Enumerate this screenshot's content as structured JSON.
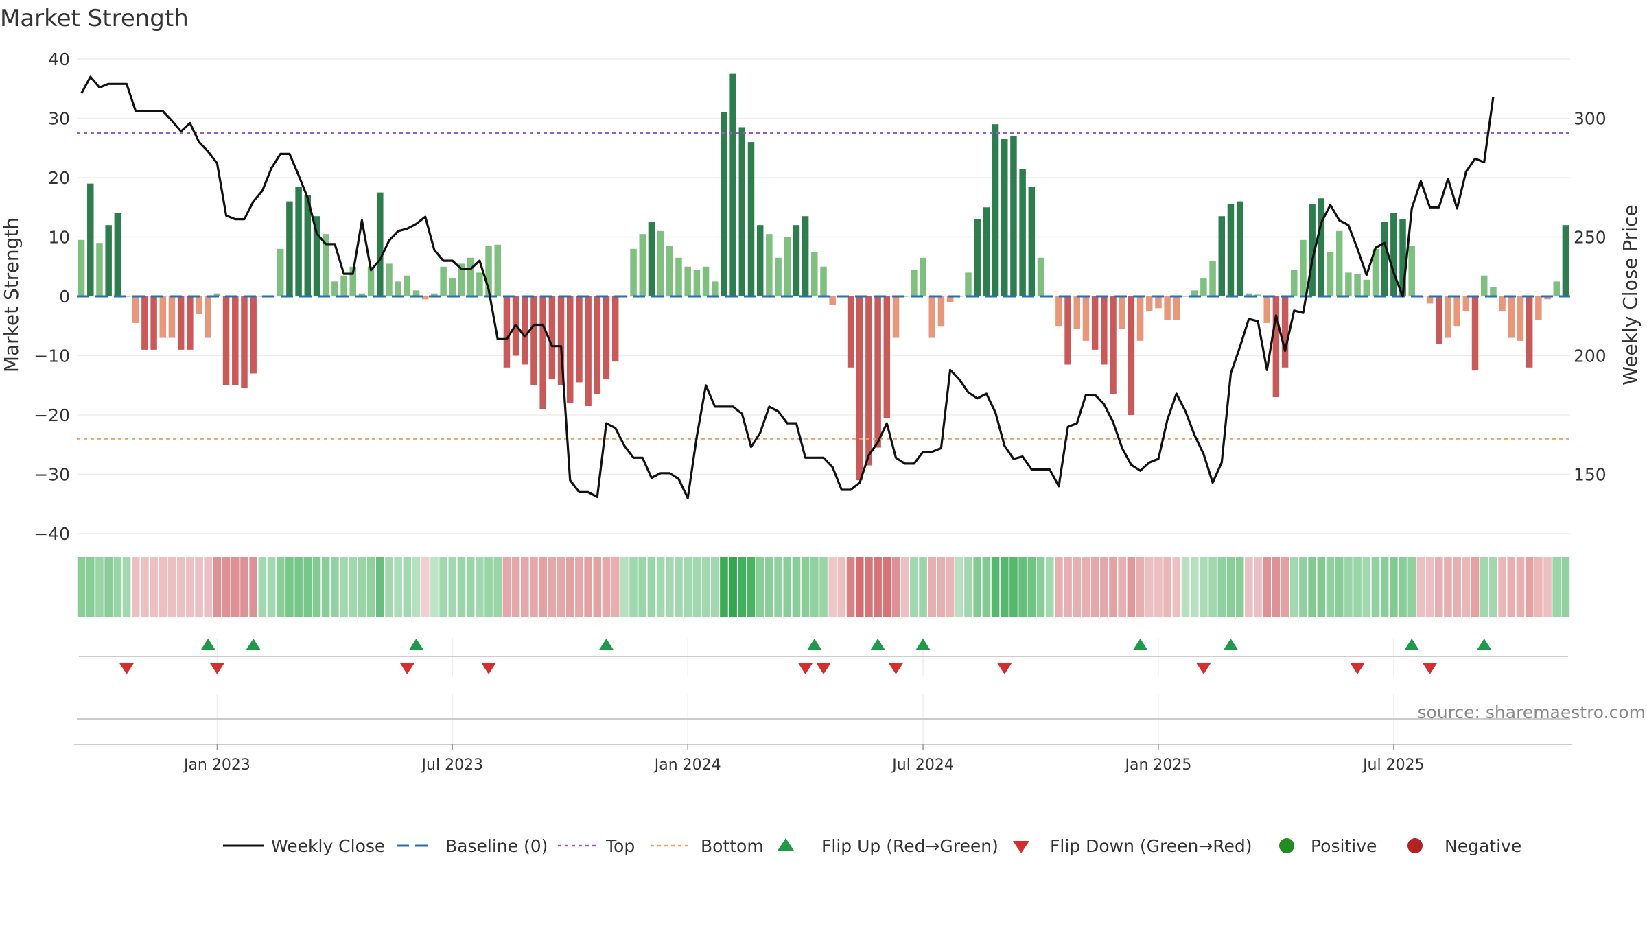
{
  "title": "Market Strength",
  "source": "source: sharemaestro.com",
  "colors": {
    "strong_green": "#2e7d4f",
    "light_green": "#7fbf7f",
    "strong_red": "#c85a5a",
    "light_red": "#e8987a",
    "line": "#111111",
    "baseline": "#2a6fb0",
    "top": "#9b59d0",
    "bottom": "#f0a060",
    "flip_up": "#1f9a4a",
    "flip_down": "#d32f2f",
    "positive": "#228b22",
    "negative": "#b22222"
  },
  "chart_data": {
    "type": "bar+line",
    "title": "Market Strength",
    "ylabel": "Market Strength",
    "y2label": "Weekly Close Price",
    "ylim": [
      -40,
      40
    ],
    "yticks": [
      "40",
      "30",
      "20",
      "10",
      "0",
      "−10",
      "−20",
      "−30",
      "−40"
    ],
    "y2lim": [
      125,
      325
    ],
    "y2ticks": [
      "300",
      "250",
      "200",
      "150"
    ],
    "top_level": 27.5,
    "bottom_level": -24,
    "x_ticks": [
      "Jan 2023",
      "Jul 2023",
      "Jan 2024",
      "Jul 2024",
      "Jan 2025",
      "Jul 2025"
    ],
    "x_tick_weeks": [
      15,
      41,
      67,
      93,
      119,
      145
    ],
    "strength": [
      9.5,
      19,
      9,
      12,
      14,
      0,
      -4.5,
      -9,
      -9,
      -7,
      -7,
      -9,
      -9,
      -3,
      -7,
      0.5,
      -15,
      -15,
      -15.5,
      -13,
      0,
      0,
      8,
      16,
      18.5,
      17,
      13.5,
      10.5,
      2.5,
      3.5,
      5,
      0.5,
      5,
      17.5,
      5.5,
      2.5,
      3.5,
      1,
      -0.5,
      0.5,
      5,
      3,
      5.5,
      6.5,
      4,
      8.5,
      8.7,
      -12,
      -10,
      -11.5,
      -15,
      -19,
      -14,
      -15,
      -18,
      -14.5,
      -18.5,
      -16.5,
      -14,
      -11,
      0,
      8,
      10.5,
      12.5,
      11,
      8.5,
      6.5,
      5,
      4.5,
      5,
      2.5,
      31,
      37.5,
      28.5,
      26,
      12,
      10.5,
      6.5,
      10,
      12,
      13.5,
      7.5,
      5,
      -1.5,
      0,
      -12,
      -31,
      -28.5,
      -25.5,
      -20.5,
      -7,
      0,
      4.5,
      6.5,
      -7,
      -5,
      -1,
      0,
      4,
      13,
      15,
      29,
      26.5,
      27,
      21.5,
      18.5,
      6.5,
      0,
      -5,
      -11.5,
      -5.5,
      -7.5,
      -9,
      -11.5,
      -16.5,
      -5.5,
      -20,
      -7.5,
      -2.5,
      -2,
      -4,
      -4,
      0,
      1,
      3,
      6,
      13.5,
      15.5,
      16,
      0.5,
      0.3,
      -4.5,
      -17,
      -12,
      4.5,
      9.5,
      15.5,
      16.5,
      7.5,
      11,
      4,
      3.8,
      2.8,
      8,
      12.5,
      14,
      13,
      8.5,
      0,
      -1.2,
      -8,
      -7,
      -5,
      -2.5,
      -12.5,
      3.5,
      1.5,
      -2.5,
      -7,
      -7.5,
      -12,
      -4,
      -0.5,
      2.5,
      12
    ],
    "close": [
      310.5,
      317.5,
      313,
      314.5,
      314.5,
      314.5,
      303,
      303,
      303,
      303,
      299,
      294.5,
      298,
      290,
      286,
      281,
      259,
      257.5,
      257.5,
      265,
      269.5,
      279,
      285,
      285,
      276,
      266.5,
      251.5,
      247,
      247,
      234.5,
      234.5,
      257,
      236,
      240.5,
      248.5,
      252.5,
      253.5,
      255.5,
      258.5,
      244.5,
      240,
      240,
      236.5,
      236.5,
      240,
      228,
      207,
      207,
      213,
      208,
      213,
      213,
      204,
      204,
      147.5,
      142.5,
      142.5,
      140.5,
      171.5,
      169.5,
      162,
      157,
      157,
      148.5,
      150.5,
      150.5,
      148,
      140,
      166,
      187.5,
      178.5,
      178.5,
      178.5,
      175.5,
      161.5,
      167.5,
      178.5,
      176.5,
      171.5,
      171.5,
      157,
      157,
      157,
      153,
      143.5,
      143.5,
      146.5,
      158,
      163.5,
      171.5,
      157,
      154.5,
      154.5,
      159.5,
      159.5,
      161,
      194,
      190,
      184.5,
      182,
      184,
      176,
      162,
      156.5,
      157.5,
      152,
      152,
      152,
      145,
      170,
      171.5,
      183.5,
      183.5,
      179.5,
      172,
      161,
      154,
      151.5,
      155,
      156.5,
      173,
      184,
      176.5,
      166.5,
      158.5,
      146.5,
      155,
      192.5,
      203.5,
      215.5,
      214.5,
      194,
      217,
      202,
      219,
      218,
      240,
      256,
      263.5,
      257,
      255,
      245,
      234,
      245.5,
      247.5,
      235,
      225,
      262,
      273.5,
      262.5,
      262.5,
      274.5,
      262,
      277.5,
      283,
      281.5,
      309
    ],
    "heat": [
      0.45,
      0.45,
      0.35,
      0.45,
      0.35,
      0.3,
      -0.2,
      -0.2,
      -0.2,
      -0.2,
      -0.2,
      -0.2,
      -0.2,
      -0.2,
      -0.2,
      -0.5,
      -0.5,
      -0.5,
      -0.5,
      -0.5,
      0.3,
      0.3,
      0.45,
      0.55,
      0.55,
      0.55,
      0.5,
      0.45,
      0.4,
      0.3,
      0.3,
      0.35,
      0.4,
      0.65,
      0.3,
      0.25,
      0.3,
      0.2,
      -0.1,
      0.15,
      0.3,
      0.3,
      0.35,
      0.35,
      0.3,
      0.35,
      0.35,
      -0.35,
      -0.35,
      -0.35,
      -0.35,
      -0.4,
      -0.35,
      -0.35,
      -0.4,
      -0.35,
      -0.4,
      -0.4,
      -0.35,
      -0.3,
      0.2,
      0.3,
      0.35,
      0.35,
      0.3,
      0.3,
      0.3,
      0.3,
      0.3,
      0.3,
      0.3,
      0.9,
      0.95,
      0.85,
      0.8,
      0.45,
      0.45,
      0.4,
      0.45,
      0.45,
      0.45,
      0.4,
      0.35,
      -0.15,
      -0.2,
      -0.6,
      -0.75,
      -0.7,
      -0.7,
      -0.7,
      -0.5,
      -0.2,
      0.3,
      0.35,
      -0.3,
      -0.3,
      -0.25,
      0.2,
      0.3,
      0.5,
      0.5,
      0.75,
      0.75,
      0.75,
      0.65,
      0.6,
      0.45,
      0.3,
      -0.3,
      -0.3,
      -0.3,
      -0.3,
      -0.35,
      -0.35,
      -0.4,
      -0.3,
      -0.45,
      -0.3,
      -0.2,
      -0.2,
      -0.25,
      -0.2,
      0.2,
      0.2,
      0.25,
      0.3,
      0.4,
      0.45,
      0.45,
      -0.2,
      -0.2,
      -0.5,
      -0.5,
      -0.4,
      0.3,
      0.4,
      0.5,
      0.5,
      0.4,
      0.45,
      0.35,
      0.35,
      0.3,
      0.4,
      0.45,
      0.5,
      0.45,
      0.4,
      -0.2,
      -0.2,
      -0.3,
      -0.3,
      -0.3,
      -0.25,
      -0.4,
      0.3,
      0.3,
      -0.25,
      -0.3,
      -0.3,
      -0.4,
      -0.25,
      -0.2,
      0.35,
      0.4
    ],
    "flip_up_weeks": [
      14,
      19,
      37,
      58,
      81,
      88,
      93,
      117,
      127,
      147,
      155
    ],
    "flip_down_weeks": [
      5,
      15,
      36,
      45,
      80,
      82,
      90,
      102,
      124,
      141,
      149
    ],
    "legend_position": "bottom",
    "legend": [
      {
        "label": "Weekly Close",
        "type": "line"
      },
      {
        "label": "Baseline (0)",
        "type": "dash"
      },
      {
        "label": "Top",
        "type": "dot-purple"
      },
      {
        "label": "Bottom",
        "type": "dot-orange"
      },
      {
        "label": "Flip Up (Red→Green)",
        "type": "tri-up"
      },
      {
        "label": "Flip Down (Green→Red)",
        "type": "tri-down"
      },
      {
        "label": "Positive",
        "type": "circle-green"
      },
      {
        "label": "Negative",
        "type": "circle-red"
      }
    ]
  }
}
